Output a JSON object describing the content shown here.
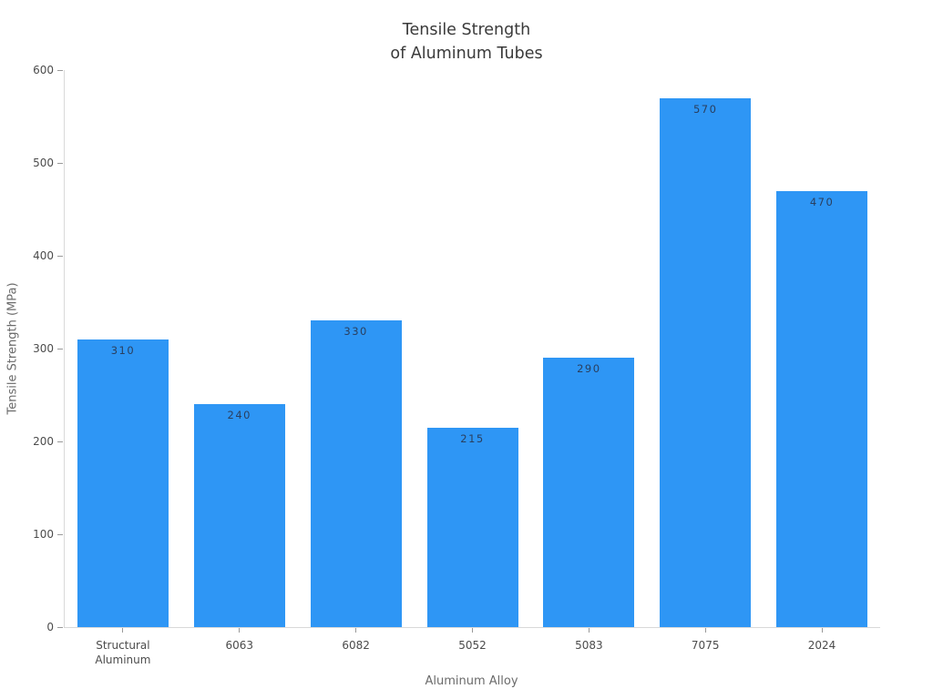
{
  "chart_data": {
    "type": "bar",
    "title": "Tensile Strength of Aluminum Tubes",
    "title_lines": [
      "Tensile Strength",
      "of Aluminum Tubes"
    ],
    "categories": [
      "Structural Aluminum",
      "6063",
      "6082",
      "5052",
      "5083",
      "7075",
      "2024"
    ],
    "values": [
      310,
      240,
      330,
      215,
      290,
      570,
      470
    ],
    "xlabel": "Aluminum Alloy",
    "ylabel": "Tensile Strength (MPa)",
    "ylim": [
      0,
      600
    ],
    "yticks": [
      0,
      100,
      200,
      300,
      400,
      500,
      600
    ],
    "grid": false,
    "legend": "none",
    "background_color": "#ffffff",
    "bar_color": "#2e96f5",
    "value_label_color": "#2a3f5f",
    "axis_line_color": "#d9d9d9",
    "tick_mark_color": "#999999"
  }
}
